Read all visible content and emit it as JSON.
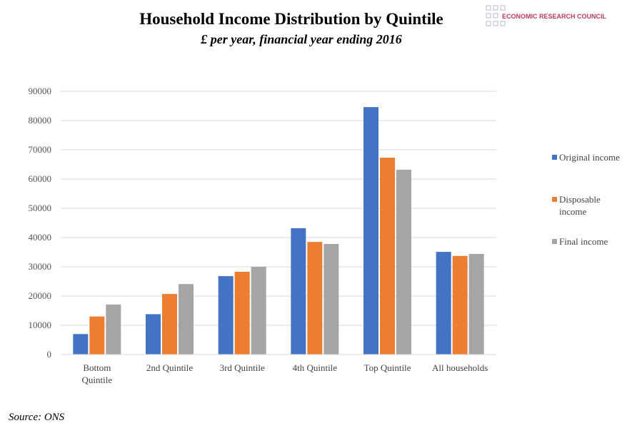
{
  "brand": "ECONOMIC RESEARCH COUNCIL",
  "source": "Source: ONS",
  "chart_data": {
    "type": "bar",
    "title": "Household Income Distribution by Quintile",
    "subtitle": "£ per year, financial year ending 2016",
    "categories": [
      "Bottom Quintile",
      "2nd Quintile",
      "3rd Quintile",
      "4th Quintile",
      "Top Quintile",
      "All households"
    ],
    "series": [
      {
        "name": "Original income",
        "color": "#4472c4",
        "values": [
          7000,
          13800,
          26800,
          43200,
          84600,
          35100
        ]
      },
      {
        "name": "Disposable income",
        "color": "#ed7d31",
        "values": [
          13000,
          20700,
          28300,
          38500,
          67300,
          33700
        ]
      },
      {
        "name": "Final income",
        "color": "#a5a5a5",
        "values": [
          17100,
          24100,
          30000,
          37800,
          63200,
          34400
        ]
      }
    ],
    "ylim": [
      0,
      90000
    ],
    "yticks": [
      0,
      10000,
      20000,
      30000,
      40000,
      50000,
      60000,
      70000,
      80000,
      90000
    ],
    "grid": true,
    "legend": "right"
  }
}
